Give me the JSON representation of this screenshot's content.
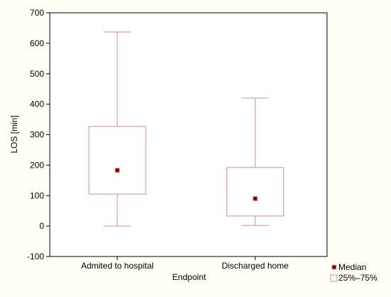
{
  "chart_data": {
    "type": "box",
    "xlabel": "Endpoint",
    "ylabel": "LOS [min]",
    "ylim": [
      -100,
      700
    ],
    "yticks": [
      -100,
      0,
      100,
      200,
      300,
      400,
      500,
      600,
      700
    ],
    "grid": false,
    "legend_position": "bottom-right",
    "categories": [
      "Admited to hospital",
      "Discharged home"
    ],
    "boxes": [
      {
        "category": "Admited to hospital",
        "min": 0,
        "q1": 105,
        "median": 183,
        "q3": 327,
        "max": 637
      },
      {
        "category": "Discharged home",
        "min": 2,
        "q1": 33,
        "median": 90,
        "q3": 192,
        "max": 420
      }
    ],
    "legend": {
      "median": "Median",
      "box": "25%–75%"
    },
    "colors": {
      "background": "#fffff5",
      "plot_background": "#ffffff",
      "box_stroke": "#d98c8c",
      "median_fill": "#7a0000",
      "axis": "#000000"
    }
  }
}
